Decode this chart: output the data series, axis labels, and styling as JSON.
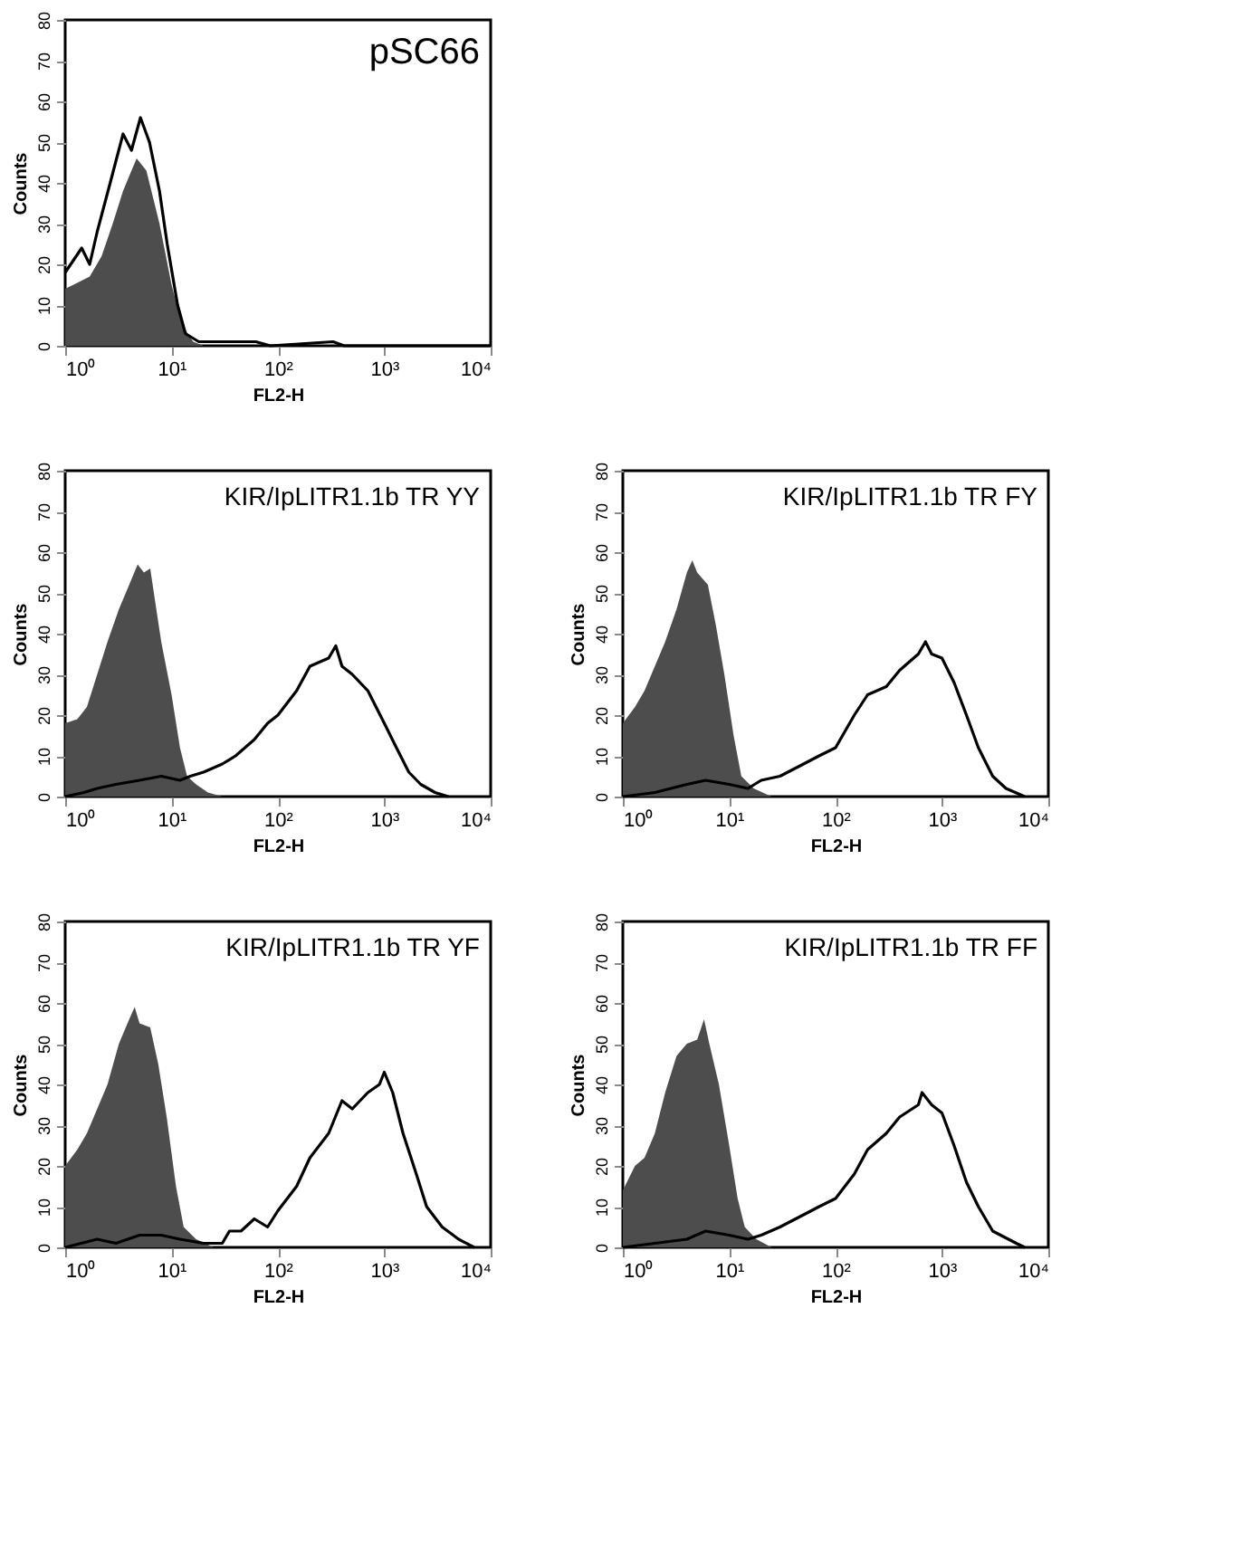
{
  "chart_data": [
    {
      "type": "area",
      "title": "pSC66",
      "xlabel": "FL2-H",
      "ylabel": "Counts",
      "log": "x",
      "grid": false,
      "xlim": [
        1,
        10000
      ],
      "ylim": [
        0,
        80
      ],
      "xticks": [
        {
          "value": 1,
          "label": "10⁰"
        },
        {
          "value": 10,
          "label": "10¹"
        },
        {
          "value": 100,
          "label": "10²"
        },
        {
          "value": 1000,
          "label": "10³"
        },
        {
          "value": 10000,
          "label": "10⁴"
        }
      ],
      "yticks": [
        0,
        10,
        20,
        30,
        40,
        50,
        60,
        70,
        80
      ],
      "series": [
        {
          "color": "#4d4d4d",
          "x": [
            1,
            1.2,
            1.7,
            2.2,
            2.8,
            3.5,
            4.2,
            4.7,
            5.8,
            7.7,
            10,
            12.6,
            16,
            20
          ],
          "values": [
            14,
            15,
            17,
            22,
            30,
            38,
            43,
            46,
            43,
            30,
            15,
            5,
            1,
            0
          ]
        },
        {
          "type": "line",
          "color": "#000000",
          "x": [
            1,
            1.43,
            1.7,
            2,
            2.65,
            3.5,
            4.2,
            5.1,
            6.2,
            7.7,
            9.1,
            11.4,
            13.5,
            18,
            31,
            62,
            85,
            330,
            420,
            10000
          ],
          "values": [
            18,
            24,
            20,
            28,
            40,
            52,
            48,
            56,
            50,
            38,
            25,
            10,
            3,
            1,
            1,
            1,
            0,
            1,
            0,
            0
          ]
        }
      ]
    },
    {
      "type": "area",
      "title": "KIR/IpLITR1.1b TR YY",
      "xlabel": "FL2-H",
      "ylabel": "Counts",
      "log": "x",
      "grid": false,
      "xlim": [
        1,
        10000
      ],
      "ylim": [
        0,
        80
      ],
      "xticks": [
        {
          "value": 1,
          "label": "10⁰"
        },
        {
          "value": 10,
          "label": "10¹"
        },
        {
          "value": 100,
          "label": "10²"
        },
        {
          "value": 1000,
          "label": "10³"
        },
        {
          "value": 10000,
          "label": "10⁴"
        }
      ],
      "yticks": [
        0,
        10,
        20,
        30,
        40,
        50,
        60,
        70,
        80
      ],
      "series": [
        {
          "color": "#4d4d4d",
          "x": [
            1,
            1.3,
            1.6,
            2,
            2.5,
            3.2,
            4,
            4.8,
            5.5,
            6.3,
            7,
            8,
            10,
            12,
            14,
            17,
            22,
            30
          ],
          "values": [
            18,
            19,
            22,
            30,
            38,
            46,
            52,
            57,
            55,
            56,
            48,
            38,
            25,
            12,
            5,
            3,
            1,
            0
          ]
        },
        {
          "type": "line",
          "color": "#000000",
          "x": [
            1,
            1.5,
            2,
            3,
            5,
            8,
            12,
            15,
            20,
            30,
            40,
            60,
            80,
            100,
            150,
            200,
            300,
            350,
            400,
            500,
            700,
            800,
            1000,
            1300,
            1700,
            2200,
            3000,
            4000
          ],
          "values": [
            0,
            1,
            2,
            3,
            4,
            5,
            4,
            5,
            6,
            8,
            10,
            14,
            18,
            20,
            26,
            32,
            34,
            37,
            32,
            30,
            26,
            23,
            18,
            12,
            6,
            3,
            1,
            0
          ]
        }
      ]
    },
    {
      "type": "area",
      "title": "KIR/IpLITR1.1b TR FY",
      "xlabel": "FL2-H",
      "ylabel": "Counts",
      "log": "x",
      "grid": false,
      "xlim": [
        1,
        10000
      ],
      "ylim": [
        0,
        80
      ],
      "xticks": [
        {
          "value": 1,
          "label": "10⁰"
        },
        {
          "value": 10,
          "label": "10¹"
        },
        {
          "value": 100,
          "label": "10²"
        },
        {
          "value": 1000,
          "label": "10³"
        },
        {
          "value": 10000,
          "label": "10⁴"
        }
      ],
      "yticks": [
        0,
        10,
        20,
        30,
        40,
        50,
        60,
        70,
        80
      ],
      "series": [
        {
          "color": "#4d4d4d",
          "x": [
            1,
            1.3,
            1.6,
            2,
            2.5,
            3.2,
            4,
            4.5,
            5,
            6.3,
            7.5,
            9,
            11,
            13,
            17,
            25
          ],
          "values": [
            18,
            22,
            26,
            32,
            38,
            46,
            55,
            58,
            55,
            52,
            42,
            30,
            15,
            5,
            2,
            0
          ]
        },
        {
          "type": "line",
          "color": "#000000",
          "x": [
            1,
            2,
            4,
            6,
            10,
            15,
            20,
            30,
            50,
            70,
            100,
            150,
            200,
            300,
            400,
            600,
            700,
            800,
            1000,
            1300,
            1700,
            2200,
            3000,
            4000,
            6000
          ],
          "values": [
            0,
            1,
            3,
            4,
            3,
            2,
            4,
            5,
            8,
            10,
            12,
            20,
            25,
            27,
            31,
            35,
            38,
            35,
            34,
            28,
            20,
            12,
            5,
            2,
            0
          ]
        }
      ]
    },
    {
      "type": "area",
      "title": "KIR/IpLITR1.1b TR YF",
      "xlabel": "FL2-H",
      "ylabel": "Counts",
      "log": "x",
      "grid": false,
      "xlim": [
        1,
        10000
      ],
      "ylim": [
        0,
        80
      ],
      "xticks": [
        {
          "value": 1,
          "label": "10⁰"
        },
        {
          "value": 10,
          "label": "10¹"
        },
        {
          "value": 100,
          "label": "10²"
        },
        {
          "value": 1000,
          "label": "10³"
        },
        {
          "value": 10000,
          "label": "10⁴"
        }
      ],
      "yticks": [
        0,
        10,
        20,
        30,
        40,
        50,
        60,
        70,
        80
      ],
      "series": [
        {
          "color": "#4d4d4d",
          "x": [
            1,
            1.3,
            1.6,
            2,
            2.5,
            3.2,
            4,
            4.5,
            5,
            6.3,
            7.5,
            9,
            11,
            13,
            17,
            25
          ],
          "values": [
            20,
            24,
            28,
            34,
            40,
            50,
            56,
            59,
            55,
            54,
            45,
            32,
            15,
            5,
            2,
            0
          ]
        },
        {
          "type": "line",
          "color": "#000000",
          "x": [
            1,
            2,
            3,
            5,
            8,
            12,
            20,
            30,
            35,
            45,
            60,
            80,
            100,
            150,
            200,
            300,
            400,
            500,
            700,
            900,
            1000,
            1200,
            1500,
            2000,
            2500,
            3500,
            5000,
            7000
          ],
          "values": [
            0,
            2,
            1,
            3,
            3,
            2,
            1,
            1,
            4,
            4,
            7,
            5,
            9,
            15,
            22,
            28,
            36,
            34,
            38,
            40,
            43,
            38,
            28,
            18,
            10,
            5,
            2,
            0
          ]
        }
      ]
    },
    {
      "type": "area",
      "title": "KIR/IpLITR1.1b TR FF",
      "xlabel": "FL2-H",
      "ylabel": "Counts",
      "log": "x",
      "grid": false,
      "xlim": [
        1,
        10000
      ],
      "ylim": [
        0,
        80
      ],
      "xticks": [
        {
          "value": 1,
          "label": "10⁰"
        },
        {
          "value": 10,
          "label": "10¹"
        },
        {
          "value": 100,
          "label": "10²"
        },
        {
          "value": 1000,
          "label": "10³"
        },
        {
          "value": 10000,
          "label": "10⁴"
        }
      ],
      "yticks": [
        0,
        10,
        20,
        30,
        40,
        50,
        60,
        70,
        80
      ],
      "series": [
        {
          "color": "#4d4d4d",
          "x": [
            1,
            1.3,
            1.6,
            2,
            2.5,
            3.2,
            4,
            5,
            5.8,
            6.5,
            8,
            10,
            12,
            14,
            18,
            25
          ],
          "values": [
            14,
            20,
            22,
            28,
            38,
            47,
            50,
            51,
            56,
            50,
            40,
            25,
            12,
            5,
            2,
            0
          ]
        },
        {
          "type": "line",
          "color": "#000000",
          "x": [
            1,
            2,
            4,
            6,
            10,
            15,
            20,
            30,
            50,
            70,
            100,
            150,
            200,
            300,
            400,
            600,
            650,
            800,
            1000,
            1300,
            1700,
            2200,
            3000,
            5000,
            6000
          ],
          "values": [
            0,
            1,
            2,
            4,
            3,
            2,
            3,
            5,
            8,
            10,
            12,
            18,
            24,
            28,
            32,
            35,
            38,
            35,
            33,
            25,
            16,
            10,
            4,
            1,
            0
          ]
        }
      ]
    }
  ]
}
